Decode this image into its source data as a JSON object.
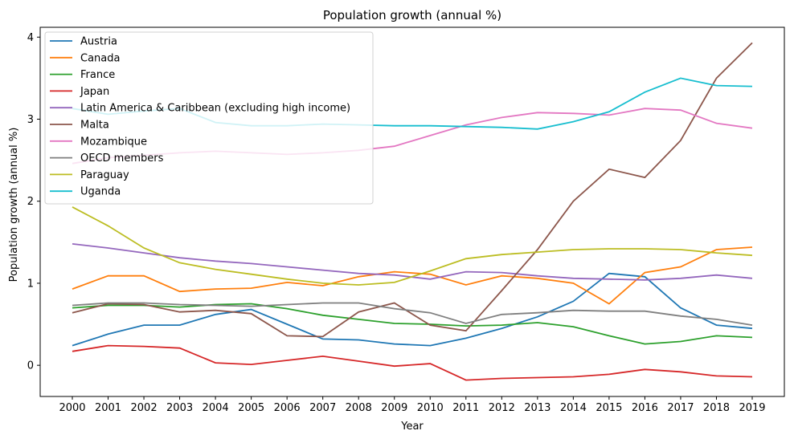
{
  "chart_data": {
    "type": "line",
    "title": "Population growth (annual %)",
    "xlabel": "Year",
    "ylabel": "Population growth (annual %)",
    "x": [
      "2000",
      "2001",
      "2002",
      "2003",
      "2004",
      "2005",
      "2006",
      "2007",
      "2008",
      "2009",
      "2010",
      "2011",
      "2012",
      "2013",
      "2014",
      "2015",
      "2016",
      "2017",
      "2018",
      "2019"
    ],
    "ylim": [
      -0.38,
      4.12
    ],
    "yticks": [
      0,
      1,
      2,
      3,
      4
    ],
    "grid": false,
    "legend_position": "top-left",
    "series": [
      {
        "name": "Austria",
        "color": "#1f77b4",
        "values": [
          0.24,
          0.38,
          0.49,
          0.49,
          0.62,
          0.68,
          0.5,
          0.32,
          0.31,
          0.26,
          0.24,
          0.33,
          0.45,
          0.59,
          0.78,
          1.12,
          1.08,
          0.7,
          0.49,
          0.45
        ]
      },
      {
        "name": "Canada",
        "color": "#ff7f0e",
        "values": [
          0.93,
          1.09,
          1.09,
          0.9,
          0.93,
          0.94,
          1.01,
          0.97,
          1.08,
          1.14,
          1.11,
          0.98,
          1.09,
          1.06,
          1.0,
          0.75,
          1.13,
          1.2,
          1.41,
          1.44
        ]
      },
      {
        "name": "France",
        "color": "#2ca02c",
        "values": [
          0.7,
          0.73,
          0.73,
          0.71,
          0.74,
          0.75,
          0.69,
          0.61,
          0.56,
          0.51,
          0.5,
          0.48,
          0.49,
          0.52,
          0.47,
          0.36,
          0.26,
          0.29,
          0.36,
          0.34
        ]
      },
      {
        "name": "Japan",
        "color": "#d62728",
        "values": [
          0.17,
          0.24,
          0.23,
          0.21,
          0.03,
          0.01,
          0.06,
          0.11,
          0.05,
          -0.01,
          0.02,
          -0.18,
          -0.16,
          -0.15,
          -0.14,
          -0.11,
          -0.05,
          -0.08,
          -0.13,
          -0.14
        ]
      },
      {
        "name": "Latin America & Caribbean (excluding high income)",
        "color": "#9467bd",
        "values": [
          1.48,
          1.43,
          1.37,
          1.31,
          1.27,
          1.24,
          1.2,
          1.16,
          1.12,
          1.1,
          1.05,
          1.14,
          1.13,
          1.09,
          1.06,
          1.05,
          1.04,
          1.06,
          1.1,
          1.06
        ]
      },
      {
        "name": "Malta",
        "color": "#8c564b",
        "values": [
          0.64,
          0.75,
          0.74,
          0.65,
          0.67,
          0.63,
          0.36,
          0.35,
          0.65,
          0.76,
          0.49,
          0.42,
          0.91,
          1.41,
          2.0,
          2.39,
          2.29,
          2.74,
          3.5,
          3.93
        ]
      },
      {
        "name": "Mozambique",
        "color": "#e377c2",
        "values": [
          2.46,
          2.53,
          2.56,
          2.59,
          2.61,
          2.59,
          2.57,
          2.59,
          2.62,
          2.67,
          2.8,
          2.93,
          3.02,
          3.08,
          3.07,
          3.05,
          3.13,
          3.11,
          2.95,
          2.89
        ]
      },
      {
        "name": "OECD members",
        "color": "#7f7f7f",
        "values": [
          0.73,
          0.76,
          0.76,
          0.74,
          0.73,
          0.72,
          0.74,
          0.76,
          0.76,
          0.69,
          0.64,
          0.51,
          0.62,
          0.64,
          0.67,
          0.66,
          0.66,
          0.6,
          0.56,
          0.49
        ]
      },
      {
        "name": "Paraguay",
        "color": "#bcbd22",
        "values": [
          1.93,
          1.7,
          1.43,
          1.25,
          1.17,
          1.11,
          1.05,
          1.0,
          0.98,
          1.01,
          1.15,
          1.3,
          1.35,
          1.38,
          1.41,
          1.42,
          1.42,
          1.41,
          1.37,
          1.34
        ]
      },
      {
        "name": "Uganda",
        "color": "#17becf",
        "values": [
          3.13,
          3.06,
          3.1,
          3.13,
          2.96,
          2.92,
          2.92,
          2.94,
          2.93,
          2.92,
          2.92,
          2.91,
          2.9,
          2.88,
          2.97,
          3.09,
          3.33,
          3.5,
          3.41,
          3.4
        ]
      }
    ]
  }
}
